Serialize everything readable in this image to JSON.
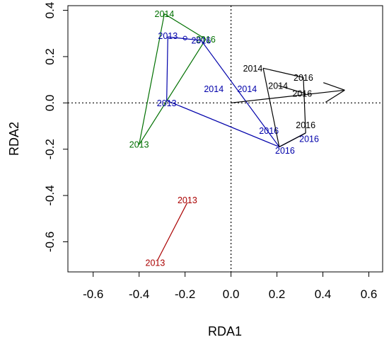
{
  "chart_data": {
    "type": "scatter",
    "xlabel": "RDA1",
    "ylabel": "RDA2",
    "xlim": [
      -0.71,
      0.66
    ],
    "ylim": [
      -0.73,
      0.42
    ],
    "xticks": [
      -0.6,
      -0.4,
      -0.2,
      0.0,
      0.2,
      0.4,
      0.6
    ],
    "yticks": [
      -0.6,
      -0.4,
      -0.2,
      0.0,
      0.2,
      0.4
    ],
    "xtick_labels": [
      "-0.6",
      "-0.4",
      "-0.2",
      "0.0",
      "0.2",
      "0.4",
      "0.6"
    ],
    "ytick_labels": [
      "-0.6",
      "-0.4",
      "-0.2",
      "0.0",
      "0.2",
      "0.4"
    ],
    "reference_lines": {
      "x": 0,
      "y": 0,
      "style": "dotted"
    },
    "arrow": {
      "from": [
        0.0,
        0.0
      ],
      "to": [
        0.495,
        0.055
      ],
      "color": "#000000"
    },
    "groups": [
      {
        "color": "#007000",
        "labels": [
          {
            "text": "2014",
            "x": -0.29,
            "y": 0.385
          },
          {
            "text": "2016",
            "x": -0.11,
            "y": 0.275
          },
          {
            "text": "2013",
            "x": -0.4,
            "y": -0.18
          }
        ],
        "segments": [
          [
            [
              -0.29,
              0.385
            ],
            [
              -0.11,
              0.275
            ]
          ],
          [
            [
              -0.29,
              0.385
            ],
            [
              -0.4,
              -0.18
            ]
          ],
          [
            [
              -0.11,
              0.275
            ],
            [
              -0.4,
              -0.18
            ]
          ]
        ]
      },
      {
        "color": "#0000aa",
        "labels": [
          {
            "text": "2013",
            "x": -0.275,
            "y": 0.29
          },
          {
            "text": "2016",
            "x": -0.13,
            "y": 0.27
          },
          {
            "text": "2013",
            "x": -0.28,
            "y": 0.0
          },
          {
            "text": "2014",
            "x": -0.075,
            "y": 0.06
          },
          {
            "text": "2014",
            "x": 0.07,
            "y": 0.06
          },
          {
            "text": "2016",
            "x": 0.165,
            "y": -0.12
          },
          {
            "text": "2016",
            "x": 0.34,
            "y": -0.155
          },
          {
            "text": "2016",
            "x": 0.235,
            "y": -0.205
          }
        ],
        "points": [
          {
            "x": -0.2,
            "y": 0.28
          }
        ],
        "segments": [
          [
            [
              -0.275,
              0.285
            ],
            [
              -0.13,
              0.27
            ]
          ],
          [
            [
              -0.275,
              0.285
            ],
            [
              -0.28,
              0.01
            ]
          ],
          [
            [
              -0.13,
              0.27
            ],
            [
              0.21,
              -0.19
            ]
          ],
          [
            [
              -0.28,
              0.01
            ],
            [
              0.21,
              -0.19
            ]
          ],
          [
            [
              0.21,
              -0.19
            ],
            [
              0.325,
              -0.13
            ]
          ]
        ]
      },
      {
        "color": "#000000",
        "labels": [
          {
            "text": "2014",
            "x": 0.095,
            "y": 0.15
          },
          {
            "text": "2016",
            "x": 0.315,
            "y": 0.11
          },
          {
            "text": "2014",
            "x": 0.205,
            "y": 0.075
          },
          {
            "text": "2016",
            "x": 0.31,
            "y": 0.04
          },
          {
            "text": "2016",
            "x": 0.325,
            "y": -0.095
          }
        ],
        "segments": [
          [
            [
              0.14,
              0.15
            ],
            [
              0.315,
              0.11
            ]
          ],
          [
            [
              0.14,
              0.15
            ],
            [
              0.21,
              -0.19
            ]
          ],
          [
            [
              0.315,
              0.11
            ],
            [
              0.325,
              -0.13
            ]
          ],
          [
            [
              0.205,
              0.075
            ],
            [
              0.325,
              0.04
            ]
          ],
          [
            [
              0.21,
              -0.19
            ],
            [
              0.325,
              -0.13
            ]
          ]
        ]
      },
      {
        "color": "#aa0000",
        "labels": [
          {
            "text": "2013",
            "x": -0.19,
            "y": -0.42
          },
          {
            "text": "2013",
            "x": -0.33,
            "y": -0.69
          }
        ],
        "segments": [
          [
            [
              -0.19,
              -0.43
            ],
            [
              -0.32,
              -0.68
            ]
          ]
        ]
      }
    ]
  }
}
